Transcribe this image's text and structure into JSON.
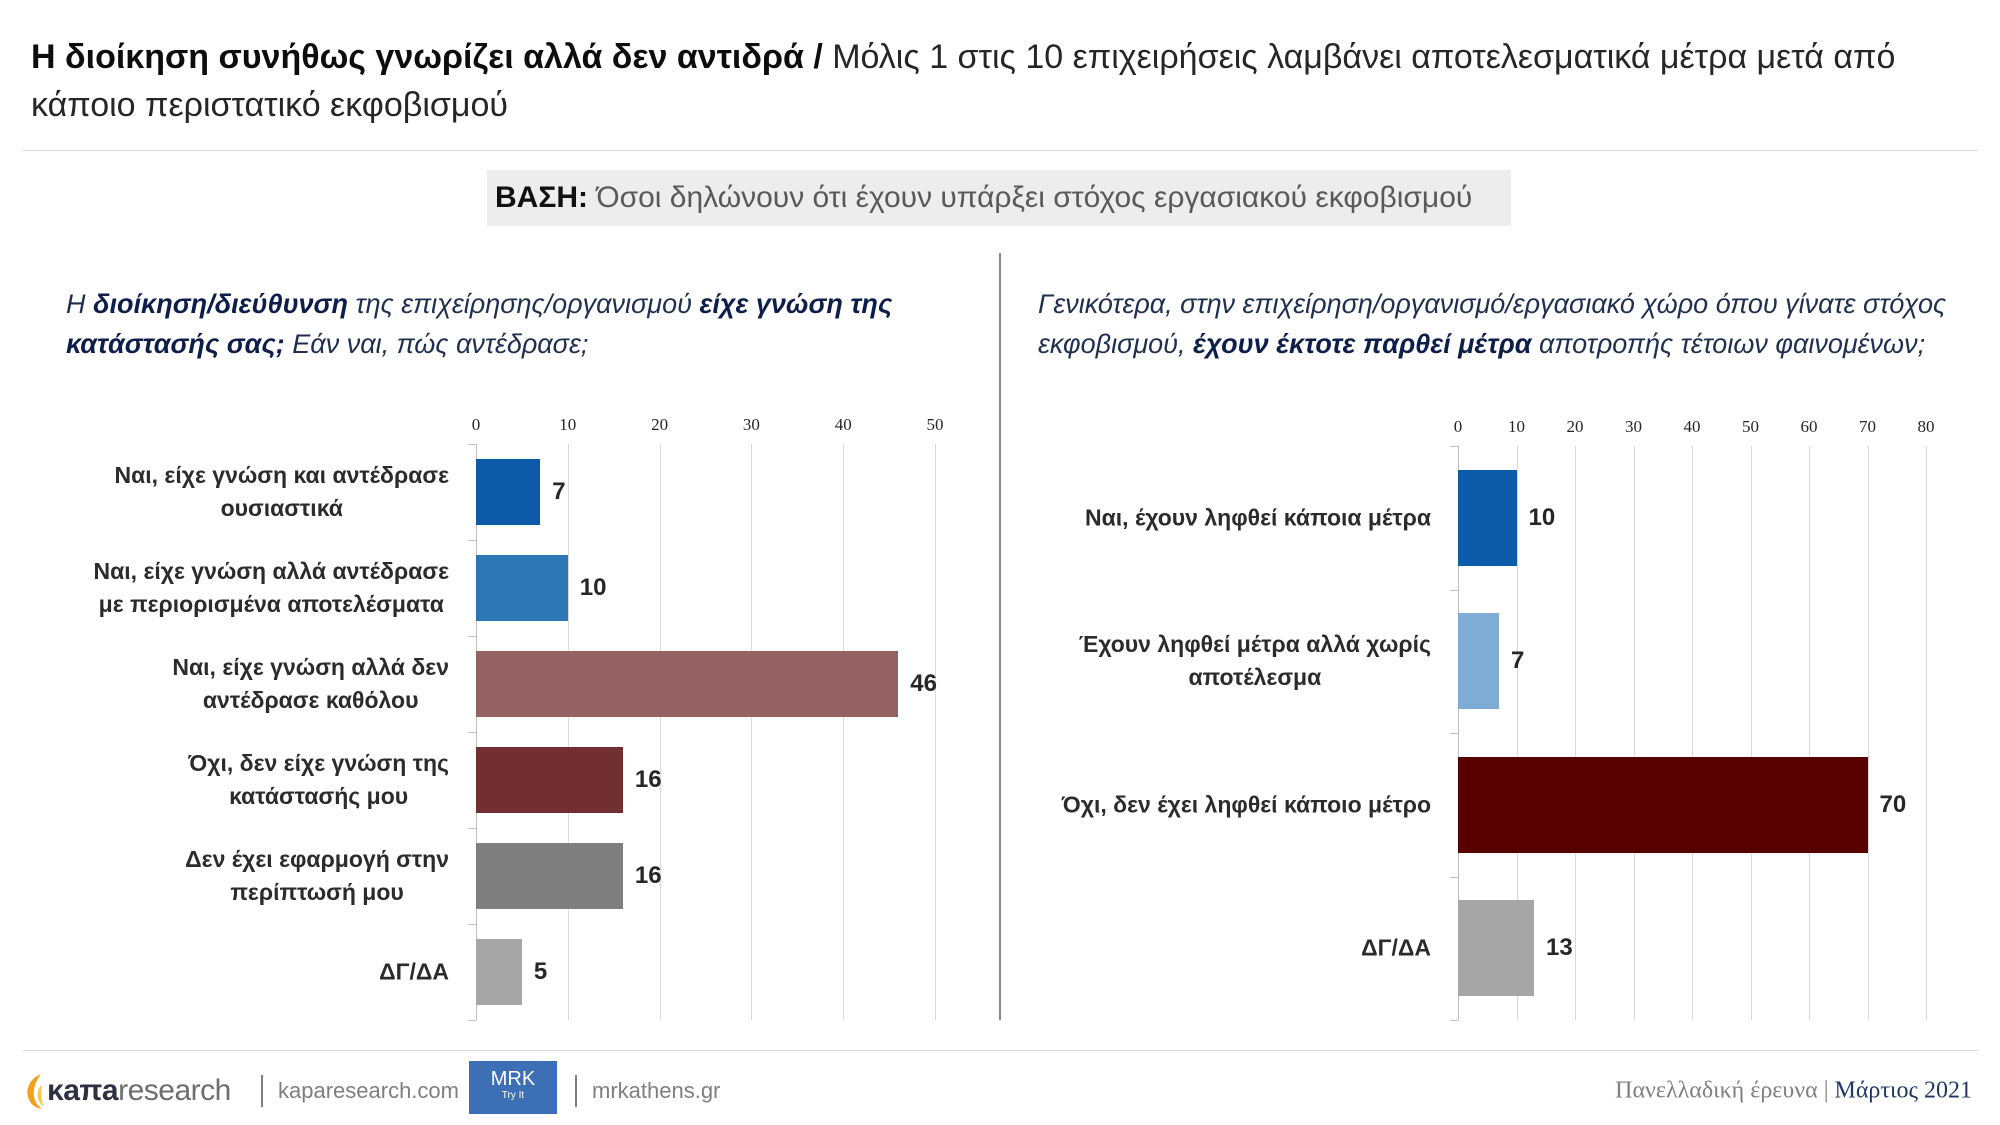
{
  "header": {
    "title_bold": "Η διοίκηση συνήθως γνωρίζει αλλά δεν αντιδρά /",
    "title_rest_line1": " Μόλις 1 στις 10 επιχειρήσεις λαμβάνει αποτελεσματικά μέτρα μετά από",
    "title_line2": "κάποιο περιστατικό εκφοβισμού"
  },
  "base": {
    "label": "ΒΑΣΗ:",
    "text": " Όσοι δηλώνουν ότι έχουν υπάρξει στόχος εργασιακού εκφοβισμού"
  },
  "left_question": {
    "l1_a": "Η ",
    "l1_b": "διοίκηση/διεύθυνση",
    "l1_c": " της επιχείρησης/οργανισμού ",
    "l1_d": "είχε γνώση της",
    "l2_a": "κατάστασής σας;",
    "l2_b": " Εάν ναι, πώς αντέδρασε;"
  },
  "right_question": {
    "l1_a": "Γενικότερα, στην επιχείρηση/οργανισμό/εργασιακό χώρο όπου γίνατε στόχος",
    "l2_a": "εκφοβισμού, ",
    "l2_b": "έχουν έκτοτε παρθεί μέτρα",
    "l2_c": " αποτροπής τέτοιων φαινομένων;"
  },
  "chart_data": [
    {
      "type": "bar",
      "categories": [
        "Ναι, είχε γνώση και αντέδρασε\nουσιαστικά",
        "Ναι, είχε γνώση αλλά αντέδρασε\nμε περιορισμένα αποτελέσματα",
        "Ναι, είχε γνώση αλλά δεν\nαντέδρασε καθόλου",
        "Όχι, δεν είχε γνώση της\nκατάστασής μου",
        "Δεν έχει εφαρμογή στην\nπερίπτωσή μου",
        "ΔΓ/ΔΑ"
      ],
      "values": [
        7,
        10,
        46,
        16,
        16,
        5
      ],
      "colors": [
        "#0b5ba8",
        "#2e75b6",
        "#956264",
        "#722f32",
        "#7f7f7f",
        "#a6a6a6"
      ],
      "xlim": [
        0,
        50
      ],
      "xticks": [
        0,
        10,
        20,
        30,
        40,
        50
      ],
      "grid": true
    },
    {
      "type": "bar",
      "categories": [
        "Ναι, έχουν ληφθεί κάποια μέτρα",
        "Έχουν ληφθεί μέτρα αλλά χωρίς\nαποτέλεσμα",
        "Όχι, δεν έχει ληφθεί κάποιο μέτρο",
        "ΔΓ/ΔΑ"
      ],
      "values": [
        10,
        7,
        70,
        13
      ],
      "colors": [
        "#0b5ba8",
        "#7facd5",
        "#560000",
        "#a6a6a6"
      ],
      "xlim": [
        0,
        80
      ],
      "xticks": [
        0,
        10,
        20,
        30,
        40,
        50,
        60,
        70,
        80
      ],
      "grid": true
    }
  ],
  "footer": {
    "logo_brand": "κaπa",
    "logo_suffix": "research",
    "site1": "kaparesearch.com",
    "mrk_label": "MRK",
    "mrk_tagline": "Try It",
    "site2": "mrkathens.gr",
    "survey_label": "Πανελλαδική έρευνα",
    "survey_separator": "|",
    "date": "Μάρτιος 2021"
  }
}
